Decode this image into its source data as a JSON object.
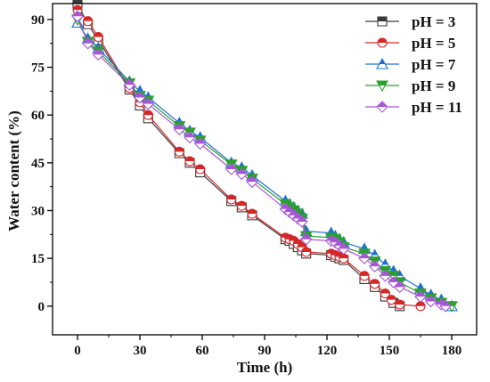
{
  "chart_data": {
    "type": "line",
    "xlabel": "Time (h)",
    "ylabel": "Water content  (%)",
    "xlim": [
      -12,
      192
    ],
    "ylim": [
      -9,
      95
    ],
    "xticks": [
      0,
      30,
      60,
      90,
      120,
      150,
      180
    ],
    "yticks": [
      0,
      15,
      30,
      45,
      60,
      75,
      90
    ],
    "legend_position": "top-right",
    "series": [
      {
        "name": "pH = 3",
        "marker": "square",
        "color": "#3a3a3a",
        "x": [
          0,
          5,
          10,
          25,
          30,
          34,
          49,
          54,
          59,
          74,
          79,
          84,
          100,
          102,
          104,
          106,
          108,
          110,
          122,
          124,
          126,
          128,
          138,
          143,
          148,
          152,
          155
        ],
        "y": [
          95,
          88.5,
          83.5,
          68,
          63,
          59,
          48,
          45,
          42,
          33,
          31,
          28.5,
          21,
          20.5,
          19.5,
          18.5,
          17.5,
          16.5,
          16,
          15.5,
          15,
          14.5,
          8.5,
          6,
          3,
          1,
          0
        ]
      },
      {
        "name": "pH = 5",
        "marker": "circle",
        "color": "#d62728",
        "x": [
          0,
          5,
          10,
          25,
          30,
          34,
          49,
          54,
          59,
          74,
          79,
          84,
          100,
          102,
          104,
          106,
          108,
          110,
          122,
          124,
          126,
          128,
          138,
          143,
          148,
          151,
          155,
          165
        ],
        "y": [
          93,
          89.5,
          84.5,
          68.5,
          64,
          60,
          48.5,
          45.5,
          43,
          33.5,
          31.5,
          29,
          21.5,
          21,
          20.5,
          19.5,
          18.5,
          17,
          16.5,
          16,
          15.5,
          15,
          9.5,
          7,
          4,
          2,
          0.5,
          0
        ]
      },
      {
        "name": "pH = 7",
        "marker": "triangle-up",
        "color": "#2070d0",
        "x": [
          0,
          5,
          10,
          25,
          30,
          34,
          49,
          54,
          59,
          74,
          79,
          84,
          100,
          102,
          104,
          106,
          108,
          110,
          122,
          124,
          126,
          128,
          138,
          143,
          148,
          152,
          155,
          165,
          170,
          175,
          180
        ],
        "y": [
          89,
          84,
          81,
          70.5,
          67.5,
          65.5,
          57.5,
          55,
          53,
          45,
          43.5,
          41,
          33,
          32,
          31,
          30,
          29,
          23.5,
          23,
          22,
          21,
          20,
          18,
          16,
          13,
          11,
          9.5,
          5.5,
          3.5,
          2,
          0
        ]
      },
      {
        "name": "pH = 9",
        "marker": "triangle-down",
        "color": "#2ca02c",
        "x": [
          0,
          5,
          10,
          25,
          30,
          34,
          49,
          54,
          59,
          74,
          79,
          84,
          100,
          102,
          104,
          106,
          108,
          110,
          122,
          124,
          126,
          128,
          138,
          143,
          148,
          152,
          155,
          165,
          170,
          175,
          180
        ],
        "y": [
          90,
          83,
          80,
          70,
          66,
          64.5,
          56.5,
          54.5,
          52,
          44.5,
          42.5,
          40,
          32,
          31,
          30,
          29,
          27.5,
          22,
          21.5,
          21,
          20,
          18.5,
          16.5,
          14,
          11,
          9.5,
          7.5,
          4,
          2.5,
          1,
          0
        ]
      },
      {
        "name": "pH = 11",
        "marker": "diamond",
        "color": "#a855d8",
        "x": [
          0,
          5,
          10,
          25,
          30,
          34,
          49,
          54,
          59,
          74,
          79,
          84,
          100,
          102,
          104,
          106,
          108,
          110,
          122,
          124,
          126,
          128,
          138,
          143,
          148,
          152,
          155,
          165,
          170,
          175,
          177
        ],
        "y": [
          91,
          82.5,
          79,
          69.5,
          65.5,
          63.5,
          55.5,
          53,
          51,
          43,
          41.5,
          39,
          30.5,
          29.5,
          28.5,
          27.5,
          26.5,
          21,
          20.5,
          20,
          19,
          18,
          15,
          12.5,
          9.5,
          7.5,
          6,
          3,
          1.5,
          0.5,
          0
        ]
      }
    ]
  }
}
